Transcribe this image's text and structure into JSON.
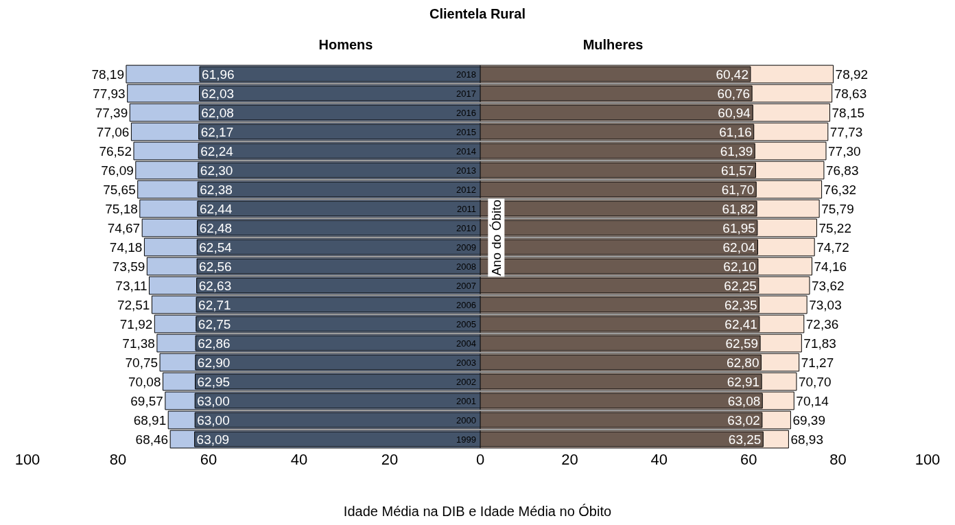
{
  "chart_data": [
    {
      "type": "bar",
      "orientation": "horizontal",
      "title": "Clientela  Rural",
      "subtitle": "Homens",
      "categories": [
        "2018",
        "2017",
        "2016",
        "2015",
        "2014",
        "2013",
        "2012",
        "2011",
        "2010",
        "2009",
        "2008",
        "2007",
        "2006",
        "2005",
        "2004",
        "2003",
        "2002",
        "2001",
        "2000",
        "1999"
      ],
      "xlim": [
        100,
        0
      ],
      "xticks": [
        100,
        80,
        60,
        40,
        20
      ],
      "grid": false,
      "series": [
        {
          "color": "#b4c7e7",
          "values": [
            78.19,
            77.93,
            77.39,
            77.06,
            76.52,
            76.09,
            75.65,
            75.18,
            74.67,
            74.18,
            73.59,
            73.11,
            72.51,
            71.92,
            71.38,
            70.75,
            70.08,
            69.57,
            68.91,
            68.46
          ],
          "value_labels": [
            "78,19",
            "77,93",
            "77,39",
            "77,06",
            "76,52",
            "76,09",
            "75,65",
            "75,18",
            "74,67",
            "74,18",
            "73,59",
            "73,11",
            "72,51",
            "71,92",
            "71,38",
            "70,75",
            "70,08",
            "69,57",
            "68,91",
            "68,46"
          ]
        },
        {
          "color": "#44546a",
          "values": [
            61.96,
            62.03,
            62.08,
            62.17,
            62.24,
            62.3,
            62.38,
            62.44,
            62.48,
            62.54,
            62.56,
            62.63,
            62.71,
            62.75,
            62.86,
            62.9,
            62.95,
            63.0,
            63.0,
            63.09
          ],
          "value_labels": [
            "61,96",
            "62,03",
            "62,08",
            "62,17",
            "62,24",
            "62,30",
            "62,38",
            "62,44",
            "62,48",
            "62,54",
            "62,56",
            "62,63",
            "62,71",
            "62,75",
            "62,86",
            "62,90",
            "62,95",
            "63,00",
            "63,00",
            "63,09"
          ]
        }
      ]
    },
    {
      "type": "bar",
      "orientation": "horizontal",
      "subtitle": "Mulheres",
      "xlabel": "Idade Média na DIB e Idade Média no Óbito",
      "ylabel": "Ano do Óbito",
      "categories": [
        "2018",
        "2017",
        "2016",
        "2015",
        "2014",
        "2013",
        "2012",
        "2011",
        "2010",
        "2009",
        "2008",
        "2007",
        "2006",
        "2005",
        "2004",
        "2003",
        "2002",
        "2001",
        "2000",
        "1999"
      ],
      "xlim": [
        0,
        100
      ],
      "xticks": [
        0,
        20,
        40,
        60,
        80,
        100
      ],
      "grid": false,
      "tick_labels": "x",
      "series": [
        {
          "color": "#fbe5d6",
          "values": [
            78.92,
            78.63,
            78.15,
            77.73,
            77.3,
            76.83,
            76.32,
            75.79,
            75.22,
            74.72,
            74.16,
            73.62,
            73.03,
            72.36,
            71.83,
            71.27,
            70.7,
            70.14,
            69.39,
            68.93
          ],
          "value_labels": [
            "78,92",
            "78,63",
            "78,15",
            "77,73",
            "77,30",
            "76,83",
            "76,32",
            "75,79",
            "75,22",
            "74,72",
            "74,16",
            "73,62",
            "73,03",
            "72,36",
            "71,83",
            "71,27",
            "70,70",
            "70,14",
            "69,39",
            "68,93"
          ]
        },
        {
          "color": "#6b5a50",
          "values": [
            60.42,
            60.76,
            60.94,
            61.16,
            61.39,
            61.57,
            61.7,
            61.82,
            61.95,
            62.04,
            62.1,
            62.25,
            62.35,
            62.41,
            62.59,
            62.8,
            62.91,
            63.08,
            63.02,
            63.25
          ],
          "value_labels": [
            "60,42",
            "60,76",
            "60,94",
            "61,16",
            "61,39",
            "61,57",
            "61,70",
            "61,82",
            "61,95",
            "62,04",
            "62,10",
            "62,25",
            "62,35",
            "62,41",
            "62,59",
            "62,80",
            "62,91",
            "63,08",
            "63,02",
            "63,25"
          ]
        }
      ]
    }
  ]
}
